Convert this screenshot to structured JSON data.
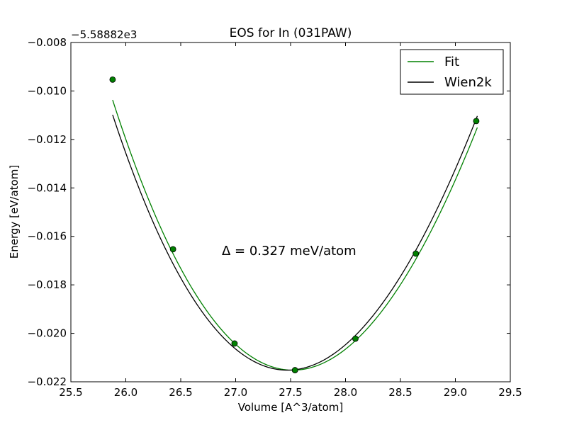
{
  "chart_data": {
    "type": "line",
    "title": "EOS for In (031PAW)",
    "xlabel": "Volume [A^3/atom]",
    "ylabel": "Energy [eV/atom]",
    "offset_text": "−5.58882e3",
    "xlim": [
      25.5,
      29.5
    ],
    "ylim": [
      -0.022,
      -0.008
    ],
    "x_ticks": [
      25.5,
      26.0,
      26.5,
      27.0,
      27.5,
      28.0,
      28.5,
      29.0,
      29.5
    ],
    "x_tick_labels": [
      "25.5",
      "26.0",
      "26.5",
      "27.0",
      "27.5",
      "28.0",
      "28.5",
      "29.0",
      "29.5"
    ],
    "y_ticks": [
      -0.008,
      -0.01,
      -0.012,
      -0.014,
      -0.016,
      -0.018,
      -0.02,
      -0.022
    ],
    "y_tick_labels": [
      "−0.008",
      "−0.010",
      "−0.012",
      "−0.014",
      "−0.016",
      "−0.018",
      "−0.020",
      "−0.022"
    ],
    "grid": false,
    "legend_position": "top-right",
    "annotation": "Δ = 0.327 meV/atom",
    "series": [
      {
        "name": "Fit",
        "color": "#008000",
        "curve": {
          "v0": 27.52,
          "e0": -0.02152,
          "k": 0.00385,
          "c3": -0.00018,
          "xmin": 25.88,
          "xmax": 29.2
        }
      },
      {
        "name": "Wien2k",
        "color": "#000000",
        "curve": {
          "v0": 27.47,
          "e0": -0.02152,
          "k": 0.00385,
          "c3": -0.0002,
          "xmin": 25.88,
          "xmax": 29.2
        }
      }
    ],
    "points": {
      "color": "#008000",
      "x": [
        25.88,
        26.43,
        26.99,
        27.54,
        28.09,
        28.64,
        29.19
      ],
      "y": [
        -0.00953,
        -0.01653,
        -0.02042,
        -0.02152,
        -0.02022,
        -0.01671,
        -0.01124
      ]
    }
  }
}
